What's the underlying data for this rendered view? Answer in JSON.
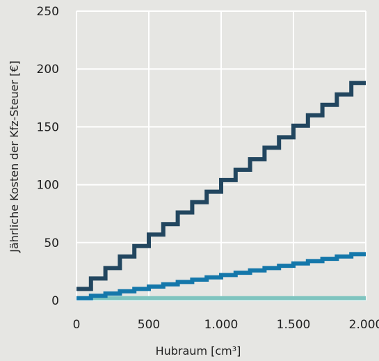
{
  "chart_data": {
    "type": "line",
    "title": "",
    "xlabel": "Hubraum [cm³]",
    "ylabel": "Jährliche Kosten der Kfz-Steuer [€]",
    "xlim": [
      0,
      2000
    ],
    "ylim": [
      0,
      250
    ],
    "grid": true,
    "legend": "none",
    "x_ticks": [
      0,
      500,
      1000,
      1500,
      2000
    ],
    "x_tick_labels": [
      "0",
      "500",
      "1.000",
      "1.500",
      "2.000"
    ],
    "y_ticks": [
      0,
      50,
      100,
      150,
      200,
      250
    ],
    "y_tick_labels": [
      "0",
      "50",
      "100",
      "150",
      "200",
      "250"
    ],
    "series": [
      {
        "color": "#7fc4bf",
        "step_width": 100,
        "x": [
          0,
          2000
        ],
        "values": [
          2,
          2
        ]
      },
      {
        "color": "#1477aa",
        "step_width": 100,
        "x": [
          0,
          100,
          200,
          300,
          400,
          500,
          600,
          700,
          800,
          900,
          1000,
          1100,
          1200,
          1300,
          1400,
          1500,
          1600,
          1700,
          1800,
          1900,
          2000
        ],
        "values": [
          2,
          4,
          6,
          8,
          10,
          12,
          14,
          16,
          18,
          20,
          22,
          24,
          26,
          28,
          30,
          32,
          34,
          36,
          38,
          40,
          40
        ]
      },
      {
        "color": "#22465f",
        "step_width": 100,
        "x": [
          0,
          100,
          200,
          300,
          400,
          500,
          600,
          700,
          800,
          900,
          1000,
          1100,
          1200,
          1300,
          1400,
          1500,
          1600,
          1700,
          1800,
          1900,
          2000
        ],
        "values": [
          10,
          19,
          28,
          38,
          47,
          57,
          66,
          76,
          85,
          94,
          104,
          113,
          122,
          132,
          141,
          151,
          160,
          169,
          178,
          188,
          188
        ]
      }
    ]
  }
}
